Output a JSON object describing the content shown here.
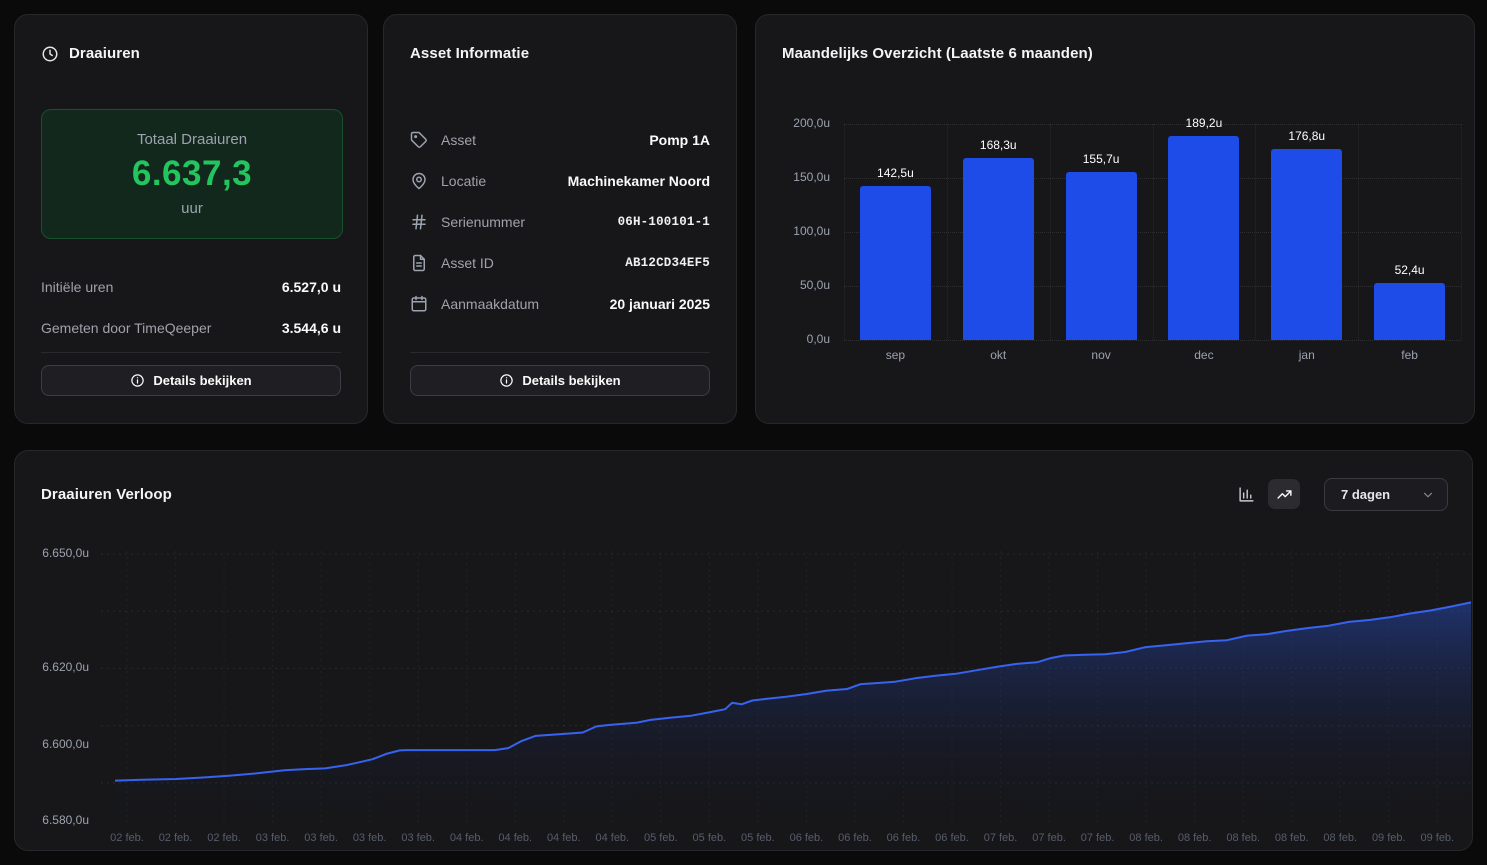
{
  "theme": {
    "page_bg": "#0a0a0b",
    "card_bg": "#17171a",
    "bar_blue": "#1d4ce8",
    "line_blue": "#3763f0",
    "green": "#22c55e"
  },
  "draaiuren_card": {
    "title": "Draaiuren",
    "total": {
      "label": "Totaal Draaiuren",
      "value": "6.637,3",
      "unit": "uur"
    },
    "rows": [
      {
        "label": "Initiële uren",
        "value": "6.527,0 u"
      },
      {
        "label": "Gemeten door TimeQeeper",
        "value": "3.544,6 u"
      }
    ],
    "details_button": "Details bekijken"
  },
  "asset_card": {
    "title": "Asset Informatie",
    "rows": [
      {
        "label": "Asset",
        "value": "Pomp 1A"
      },
      {
        "label": "Locatie",
        "value": "Machinekamer Noord"
      },
      {
        "label": "Serienummer",
        "value": "06H-100101-1"
      },
      {
        "label": "Asset ID",
        "value": "AB12CD34EF5"
      },
      {
        "label": "Aanmaakdatum",
        "value": "20 januari 2025"
      }
    ],
    "details_button": "Details bekijken"
  },
  "monthly_card": {
    "title": "Maandelijks Overzicht (Laatste 6 maanden)"
  },
  "trend_card": {
    "title": "Draaiuren Verloop",
    "range_value": "7 dagen"
  },
  "chart_data": [
    {
      "id": "monthly-bars",
      "type": "bar",
      "title": "Maandelijks Overzicht (Laatste 6 maanden)",
      "categories": [
        "sep",
        "okt",
        "nov",
        "dec",
        "jan",
        "feb"
      ],
      "values": [
        142.5,
        168.3,
        155.7,
        189.2,
        176.8,
        52.4
      ],
      "value_labels": [
        "142,5u",
        "168,3u",
        "155,7u",
        "189,2u",
        "176,8u",
        "52,4u"
      ],
      "ylim": [
        0,
        200
      ],
      "y_ticks": [
        {
          "v": 0,
          "label": "0,0u"
        },
        {
          "v": 50,
          "label": "50,0u"
        },
        {
          "v": 100,
          "label": "100,0u"
        },
        {
          "v": 150,
          "label": "150,0u"
        },
        {
          "v": 200,
          "label": "200,0u"
        }
      ],
      "bar_color": "#1d4ce8",
      "grid": "dotted"
    },
    {
      "id": "trend-line",
      "type": "area",
      "title": "Draaiuren Verloop",
      "line_color": "#3763f0",
      "area_top_color": "rgba(43,86,216,0.42)",
      "area_bottom_color": "rgba(12,16,34,0)",
      "ylim": [
        6580,
        6650
      ],
      "y_ticks": [
        {
          "v": 6650,
          "label": "6.650,0u"
        },
        {
          "v": 6620,
          "label": "6.620,0u"
        },
        {
          "v": 6600,
          "label": "6.600,0u"
        },
        {
          "v": 6580,
          "label": "6.580,0u"
        }
      ],
      "grid_h_values": [
        6650,
        6635,
        6620,
        6605,
        6590
      ],
      "x_tick_labels": [
        "02 feb.",
        "02 feb.",
        "02 feb.",
        "03 feb.",
        "03 feb.",
        "03 feb.",
        "03 feb.",
        "04 feb.",
        "04 feb.",
        "04 feb.",
        "04 feb.",
        "05 feb.",
        "05 feb.",
        "05 feb.",
        "06 feb.",
        "06 feb.",
        "06 feb.",
        "06 feb.",
        "07 feb.",
        "07 feb.",
        "07 feb.",
        "08 feb.",
        "08 feb.",
        "08 feb.",
        "08 feb.",
        "08 feb.",
        "09 feb.",
        "09 feb."
      ],
      "points": [
        [
          0.0,
          6590.6
        ],
        [
          0.02,
          6590.8
        ],
        [
          0.045,
          6591.0
        ],
        [
          0.065,
          6591.4
        ],
        [
          0.085,
          6591.9
        ],
        [
          0.105,
          6592.5
        ],
        [
          0.125,
          6593.3
        ],
        [
          0.14,
          6593.6
        ],
        [
          0.155,
          6593.8
        ],
        [
          0.17,
          6594.6
        ],
        [
          0.18,
          6595.4
        ],
        [
          0.19,
          6596.2
        ],
        [
          0.2,
          6597.6
        ],
        [
          0.21,
          6598.5
        ],
        [
          0.215,
          6598.6
        ],
        [
          0.28,
          6598.6
        ],
        [
          0.29,
          6599.1
        ],
        [
          0.3,
          6601.0
        ],
        [
          0.31,
          6602.3
        ],
        [
          0.33,
          6602.8
        ],
        [
          0.345,
          6603.2
        ],
        [
          0.355,
          6604.8
        ],
        [
          0.365,
          6605.2
        ],
        [
          0.385,
          6605.8
        ],
        [
          0.395,
          6606.5
        ],
        [
          0.41,
          6607.1
        ],
        [
          0.425,
          6607.6
        ],
        [
          0.44,
          6608.6
        ],
        [
          0.45,
          6609.3
        ],
        [
          0.455,
          6611.0
        ],
        [
          0.462,
          6610.6
        ],
        [
          0.47,
          6611.6
        ],
        [
          0.48,
          6612.0
        ],
        [
          0.495,
          6612.6
        ],
        [
          0.51,
          6613.3
        ],
        [
          0.525,
          6614.2
        ],
        [
          0.54,
          6614.6
        ],
        [
          0.55,
          6615.9
        ],
        [
          0.56,
          6616.1
        ],
        [
          0.575,
          6616.5
        ],
        [
          0.59,
          6617.4
        ],
        [
          0.605,
          6618.1
        ],
        [
          0.62,
          6618.6
        ],
        [
          0.635,
          6619.5
        ],
        [
          0.65,
          6620.4
        ],
        [
          0.665,
          6621.2
        ],
        [
          0.68,
          6621.6
        ],
        [
          0.69,
          6622.7
        ],
        [
          0.7,
          6623.4
        ],
        [
          0.715,
          6623.6
        ],
        [
          0.73,
          6623.7
        ],
        [
          0.745,
          6624.3
        ],
        [
          0.76,
          6625.6
        ],
        [
          0.775,
          6626.1
        ],
        [
          0.79,
          6626.6
        ],
        [
          0.805,
          6627.1
        ],
        [
          0.82,
          6627.4
        ],
        [
          0.835,
          6628.6
        ],
        [
          0.85,
          6629.0
        ],
        [
          0.865,
          6629.9
        ],
        [
          0.88,
          6630.6
        ],
        [
          0.895,
          6631.2
        ],
        [
          0.91,
          6632.2
        ],
        [
          0.925,
          6632.7
        ],
        [
          0.94,
          6633.4
        ],
        [
          0.955,
          6634.4
        ],
        [
          0.97,
          6635.2
        ],
        [
          0.985,
          6636.2
        ],
        [
          1.0,
          6637.3
        ]
      ]
    }
  ]
}
